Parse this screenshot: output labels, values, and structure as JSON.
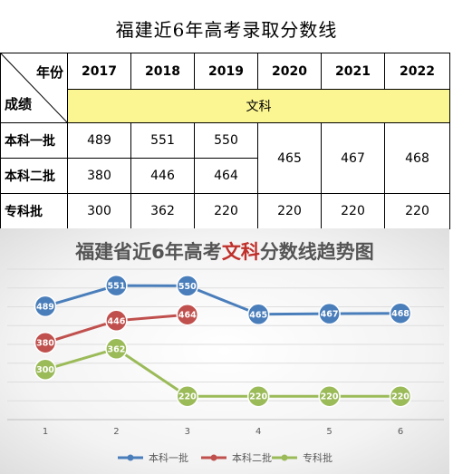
{
  "table": {
    "title": "福建近6年高考录取分数线",
    "corner_label": "年份",
    "row_header_label": "成绩",
    "subject_label": "文科",
    "years": [
      "2017",
      "2018",
      "2019",
      "2020",
      "2021",
      "2022"
    ],
    "rows": [
      {
        "label": "本科一批",
        "values": [
          "489",
          "551",
          "550"
        ]
      },
      {
        "label": "本科二批",
        "values": [
          "380",
          "446",
          "464"
        ]
      },
      {
        "label": "专科批",
        "values": [
          "300",
          "362",
          "220",
          "220",
          "220",
          "220"
        ]
      }
    ],
    "merged_values": [
      "465",
      "467",
      "468"
    ]
  },
  "chart_data": {
    "type": "line",
    "title_parts": [
      "福建省近6年高考",
      "文科",
      "分数线趋势图"
    ],
    "title_highlight_color": "#c0302b",
    "x": [
      "1",
      "2",
      "3",
      "4",
      "5",
      "6"
    ],
    "series": [
      {
        "name": "本科一批",
        "color": "#4a7ebb",
        "values": [
          489,
          551,
          550,
          465,
          467,
          468
        ]
      },
      {
        "name": "本科二批",
        "color": "#c0504d",
        "values": [
          380,
          446,
          464,
          null,
          null,
          null
        ]
      },
      {
        "name": "专科批",
        "color": "#9bbb59",
        "values": [
          300,
          362,
          220,
          220,
          220,
          220
        ]
      }
    ],
    "grid": true,
    "legend_position": "bottom"
  }
}
